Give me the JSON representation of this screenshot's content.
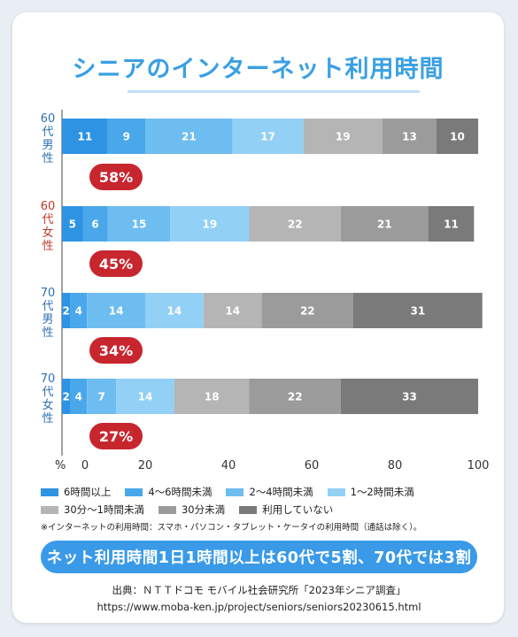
{
  "title": "シニアのインターネット利用時間",
  "chart_data": {
    "type": "bar",
    "orientation": "horizontal",
    "stacked": true,
    "x_unit_label": "%",
    "xlim": [
      0,
      100
    ],
    "x_ticks": [
      0,
      20,
      40,
      60,
      80,
      100
    ],
    "categories": [
      {
        "age": "60",
        "label": "代男性",
        "badge": "58%",
        "color": "#2f6fb3"
      },
      {
        "age": "60",
        "label": "代女性",
        "badge": "45%",
        "color": "#c0392b"
      },
      {
        "age": "70",
        "label": "代男性",
        "badge": "34%",
        "color": "#2f6fb3"
      },
      {
        "age": "70",
        "label": "代女性",
        "badge": "27%",
        "color": "#2f6fb3"
      }
    ],
    "series": [
      {
        "name": "6時間以上",
        "color": "#2e93e3",
        "values": [
          11,
          5,
          2,
          2
        ]
      },
      {
        "name": "4〜6時間未満",
        "color": "#4aa7ea",
        "values": [
          9,
          6,
          4,
          4
        ]
      },
      {
        "name": "2〜4時間未満",
        "color": "#6ebdf1",
        "values": [
          21,
          15,
          14,
          7
        ]
      },
      {
        "name": "1〜2時間未満",
        "color": "#93d0f6",
        "values": [
          17,
          19,
          14,
          14
        ]
      },
      {
        "name": "30分〜1時間未満",
        "color": "#b5b5b5",
        "values": [
          19,
          22,
          14,
          18
        ]
      },
      {
        "name": "30分未満",
        "color": "#9b9b9b",
        "values": [
          13,
          21,
          22,
          22
        ]
      },
      {
        "name": "利用していない",
        "color": "#7a7a7a",
        "values": [
          10,
          11,
          31,
          33
        ]
      }
    ],
    "legend_placement": "bottom",
    "grid": false
  },
  "note": "※インターネットの利用時間：スマホ・パソコン・タブレット・ケータイの利用時間（通話は除く）。",
  "summary": "ネット利用時間1日1時間以上は60代で5割、70代では3割",
  "source_line1": "出典：ＮＴＴドコモ モバイル社会研究所「2023年シニア調査」",
  "source_line2": "https://www.moba-ken.jp/project/seniors/seniors20230615.html"
}
